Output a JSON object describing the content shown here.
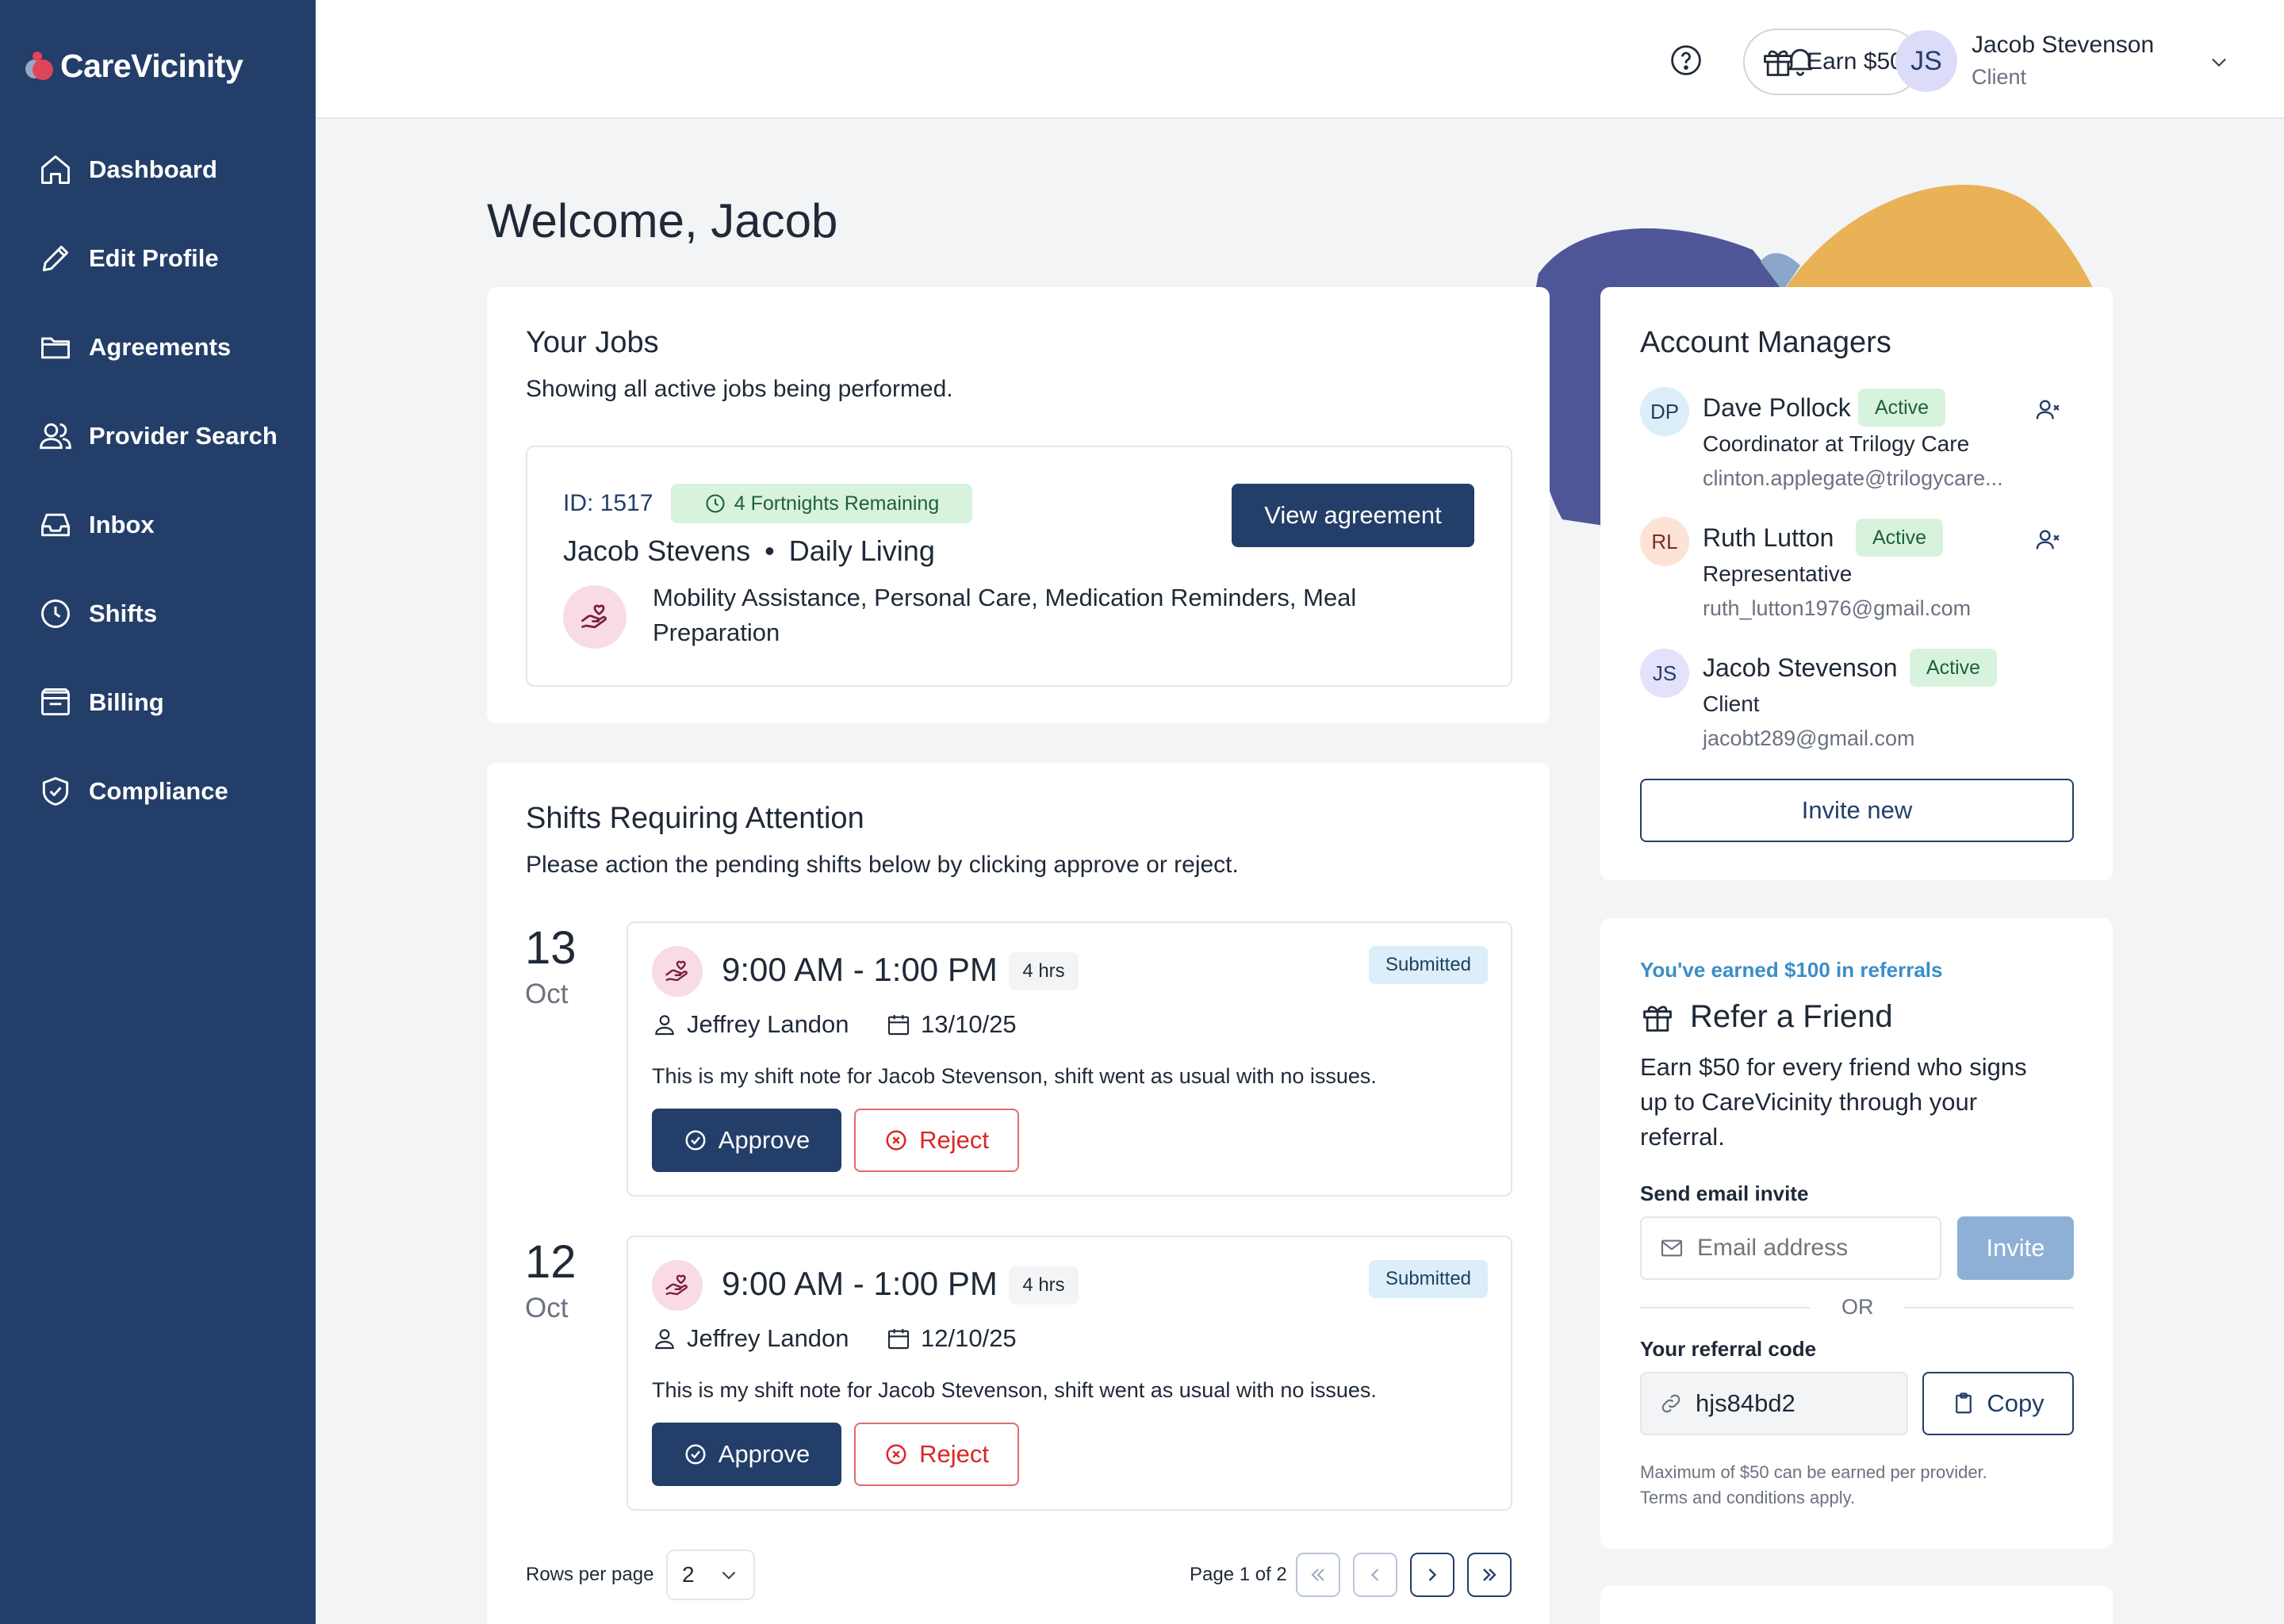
{
  "app": {
    "name": "CareVicinity"
  },
  "sidebar": {
    "items": [
      {
        "label": "Dashboard",
        "icon": "home-icon"
      },
      {
        "label": "Edit Profile",
        "icon": "pencil-icon"
      },
      {
        "label": "Agreements",
        "icon": "folder-icon"
      },
      {
        "label": "Provider Search",
        "icon": "users-icon"
      },
      {
        "label": "Inbox",
        "icon": "inbox-icon"
      },
      {
        "label": "Shifts",
        "icon": "clock-icon"
      },
      {
        "label": "Billing",
        "icon": "billing-icon"
      },
      {
        "label": "Compliance",
        "icon": "shield-icon"
      }
    ]
  },
  "topbar": {
    "earn_label": "Earn $50",
    "user": {
      "initials": "JS",
      "name": "Jacob Stevenson",
      "role": "Client"
    }
  },
  "page": {
    "title": "Welcome, Jacob"
  },
  "jobs": {
    "title": "Your Jobs",
    "subtitle": "Showing all active jobs being performed.",
    "job": {
      "id": "ID: 1517",
      "remaining": "4 Fortnights Remaining",
      "worker": "Jacob Stevens",
      "separator": "•",
      "category": "Daily Living",
      "services_line1": "Mobility Assistance, Personal Care, Medication Reminders, Meal",
      "services_line2": "Preparation",
      "view_label": "View agreement"
    }
  },
  "shifts": {
    "title": "Shifts Requiring Attention",
    "subtitle": "Please action the pending shifts below by clicking approve or reject.",
    "items": [
      {
        "day": "13",
        "month": "Oct",
        "time": "9:00 AM - 1:00 PM",
        "duration": "4 hrs",
        "status": "Submitted",
        "worker": "Jeffrey Landon",
        "date": "13/10/25",
        "note": "This is my shift note for Jacob Stevenson, shift went as usual with no issues.",
        "approve": "Approve",
        "reject": "Reject"
      },
      {
        "day": "12",
        "month": "Oct",
        "time": "9:00 AM - 1:00 PM",
        "duration": "4 hrs",
        "status": "Submitted",
        "worker": "Jeffrey Landon",
        "date": "12/10/25",
        "note": "This is my shift note for Jacob Stevenson, shift went as usual with no issues.",
        "approve": "Approve",
        "reject": "Reject"
      }
    ],
    "pagination": {
      "rows_label": "Rows per page",
      "rows_value": "2",
      "page_label": "Page 1 of 2"
    }
  },
  "managers": {
    "title": "Account Managers",
    "items": [
      {
        "initials": "DP",
        "name": "Dave Pollock",
        "status": "Active",
        "role": "Coordinator at Trilogy Care",
        "email": "clinton.applegate@trilogycare...",
        "color": "#dbeefa"
      },
      {
        "initials": "RL",
        "name": "Ruth Lutton",
        "status": "Active",
        "role": "Representative",
        "email": "ruth_lutton1976@gmail.com",
        "color": "#fde2d6"
      },
      {
        "initials": "JS",
        "name": "Jacob Stevenson",
        "status": "Active",
        "role": "Client",
        "email": "jacobt289@gmail.com",
        "color": "#e4e2fb"
      }
    ],
    "invite_label": "Invite new"
  },
  "referral": {
    "earned": "You've earned $100 in referrals",
    "title": "Refer a Friend",
    "desc_line1": "Earn $50 for every friend who signs",
    "desc_line2": "up to CareVicinity through your",
    "desc_line3": "referral.",
    "send_label": "Send email invite",
    "email_placeholder": "Email address",
    "invite_button": "Invite",
    "or_label": "OR",
    "code_label": "Your referral code",
    "code": "hjs84bd2",
    "copy_label": "Copy",
    "fine_line1": "Maximum of $50 can be earned per provider.",
    "fine_line2": "Terms and conditions apply."
  },
  "colors": {
    "sidebar": "#233e69",
    "primary": "#233e69",
    "reject": "#dc2626",
    "accent_yellow": "#e9b257",
    "accent_indigo": "#4f5698",
    "link_blue": "#3a8ec7"
  }
}
